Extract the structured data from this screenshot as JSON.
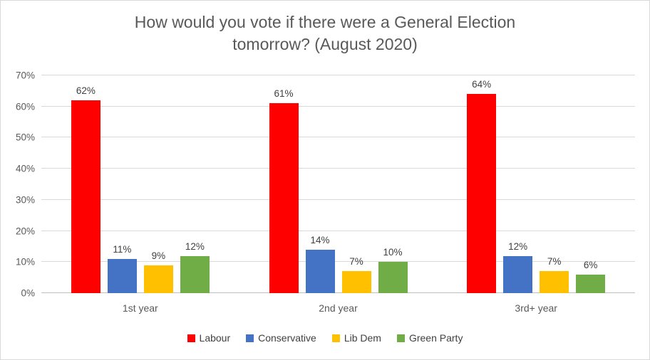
{
  "chart_data": {
    "type": "bar",
    "title": "How would you vote if there were a General Election tomorrow? (August 2020)",
    "title_lines": [
      "How would you vote if there were a General Election",
      "tomorrow? (August 2020)"
    ],
    "categories": [
      "1st year",
      "2nd year",
      "3rd+ year"
    ],
    "series": [
      {
        "name": "Labour",
        "color": "#FF0000",
        "values": [
          62,
          61,
          64
        ]
      },
      {
        "name": "Conservative",
        "color": "#4472C4",
        "values": [
          11,
          14,
          12
        ]
      },
      {
        "name": "Lib Dem",
        "color": "#FFC000",
        "values": [
          9,
          7,
          7
        ]
      },
      {
        "name": "Green Party",
        "color": "#70AD47",
        "values": [
          12,
          10,
          6
        ]
      }
    ],
    "xlabel": "",
    "ylabel": "",
    "ylim": [
      0,
      70
    ],
    "y_step": 10,
    "y_ticks": [
      "0%",
      "10%",
      "20%",
      "30%",
      "40%",
      "50%",
      "60%",
      "70%"
    ],
    "data_label_suffix": "%",
    "grid": true,
    "legend_position": "bottom",
    "style_colors": {
      "gridline": "#D9D9D9",
      "axis_line": "#BFBFBF",
      "title_text": "#595959",
      "axis_text": "#595959",
      "data_label_text": "#404040"
    }
  }
}
